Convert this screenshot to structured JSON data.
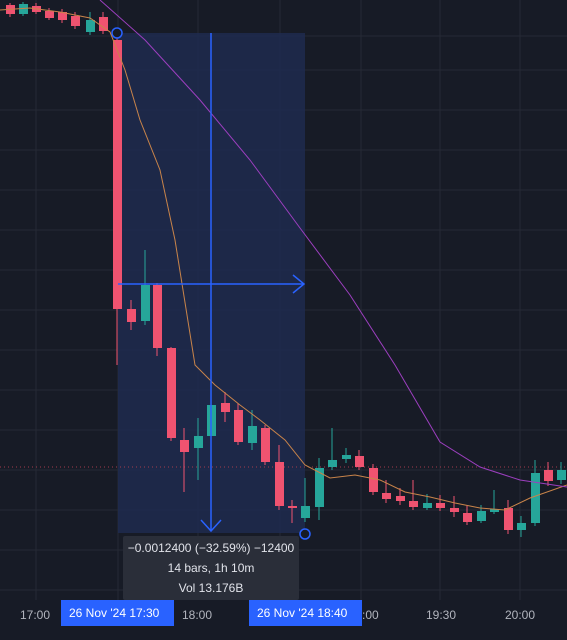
{
  "chart_data": {
    "type": "candlestick",
    "measure": {
      "change_text": "−0.0012400 (−32.59%) −12400",
      "bars_text": "14 bars, 1h 10m",
      "volume_text": "Vol 13.176B"
    },
    "x_axis": {
      "ticks": [
        "17:00",
        "18:00",
        ":00",
        "19:30",
        "20:00"
      ],
      "range_start_tag": "26 Nov '24   17:30",
      "range_end_tag": "26 Nov '24   18:40"
    }
  },
  "colors": {
    "background": "#171b26",
    "grid": "#262a35",
    "up": "#26a69a",
    "down": "#ef5370",
    "measure_fill": "#1e2a4f",
    "measure_line": "#2962ff",
    "ma_fast": "#c9844a",
    "ma_slow": "#9c3fbf",
    "last_price_line": "#a33b4e"
  }
}
